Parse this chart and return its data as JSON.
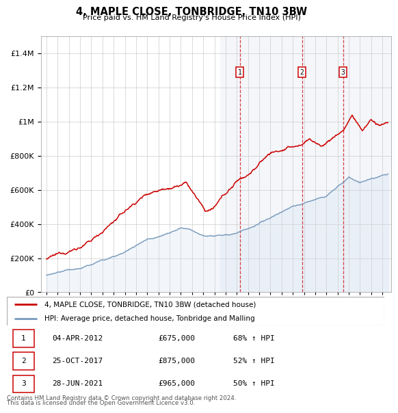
{
  "title": "4, MAPLE CLOSE, TONBRIDGE, TN10 3BW",
  "subtitle": "Price paid vs. HM Land Registry's House Price Index (HPI)",
  "legend_line1": "4, MAPLE CLOSE, TONBRIDGE, TN10 3BW (detached house)",
  "legend_line2": "HPI: Average price, detached house, Tonbridge and Malling",
  "transactions": [
    {
      "num": 1,
      "date": "04-APR-2012",
      "price": "£675,000",
      "pct": "68% ↑ HPI",
      "year": 2012.27
    },
    {
      "num": 2,
      "date": "25-OCT-2017",
      "price": "£875,000",
      "pct": "52% ↑ HPI",
      "year": 2017.82
    },
    {
      "num": 3,
      "date": "28-JUN-2021",
      "price": "£965,000",
      "pct": "50% ↑ HPI",
      "year": 2021.49
    }
  ],
  "footer1": "Contains HM Land Registry data © Crown copyright and database right 2024.",
  "footer2": "This data is licensed under the Open Government Licence v3.0.",
  "red_color": "#cc0000",
  "blue_color": "#7799bb",
  "blue_fill": "#ccddf0",
  "bg_shade_start": 2010.5,
  "ylim_max": 1500000,
  "ylim_min": 0,
  "xmin": 1994.5,
  "xmax": 2025.8,
  "ytick_interval": 200000,
  "ytick_labels": [
    "£0",
    "£200K",
    "£400K",
    "£600K",
    "£800K",
    "£1M",
    "£1.2M",
    "£1.4M"
  ]
}
